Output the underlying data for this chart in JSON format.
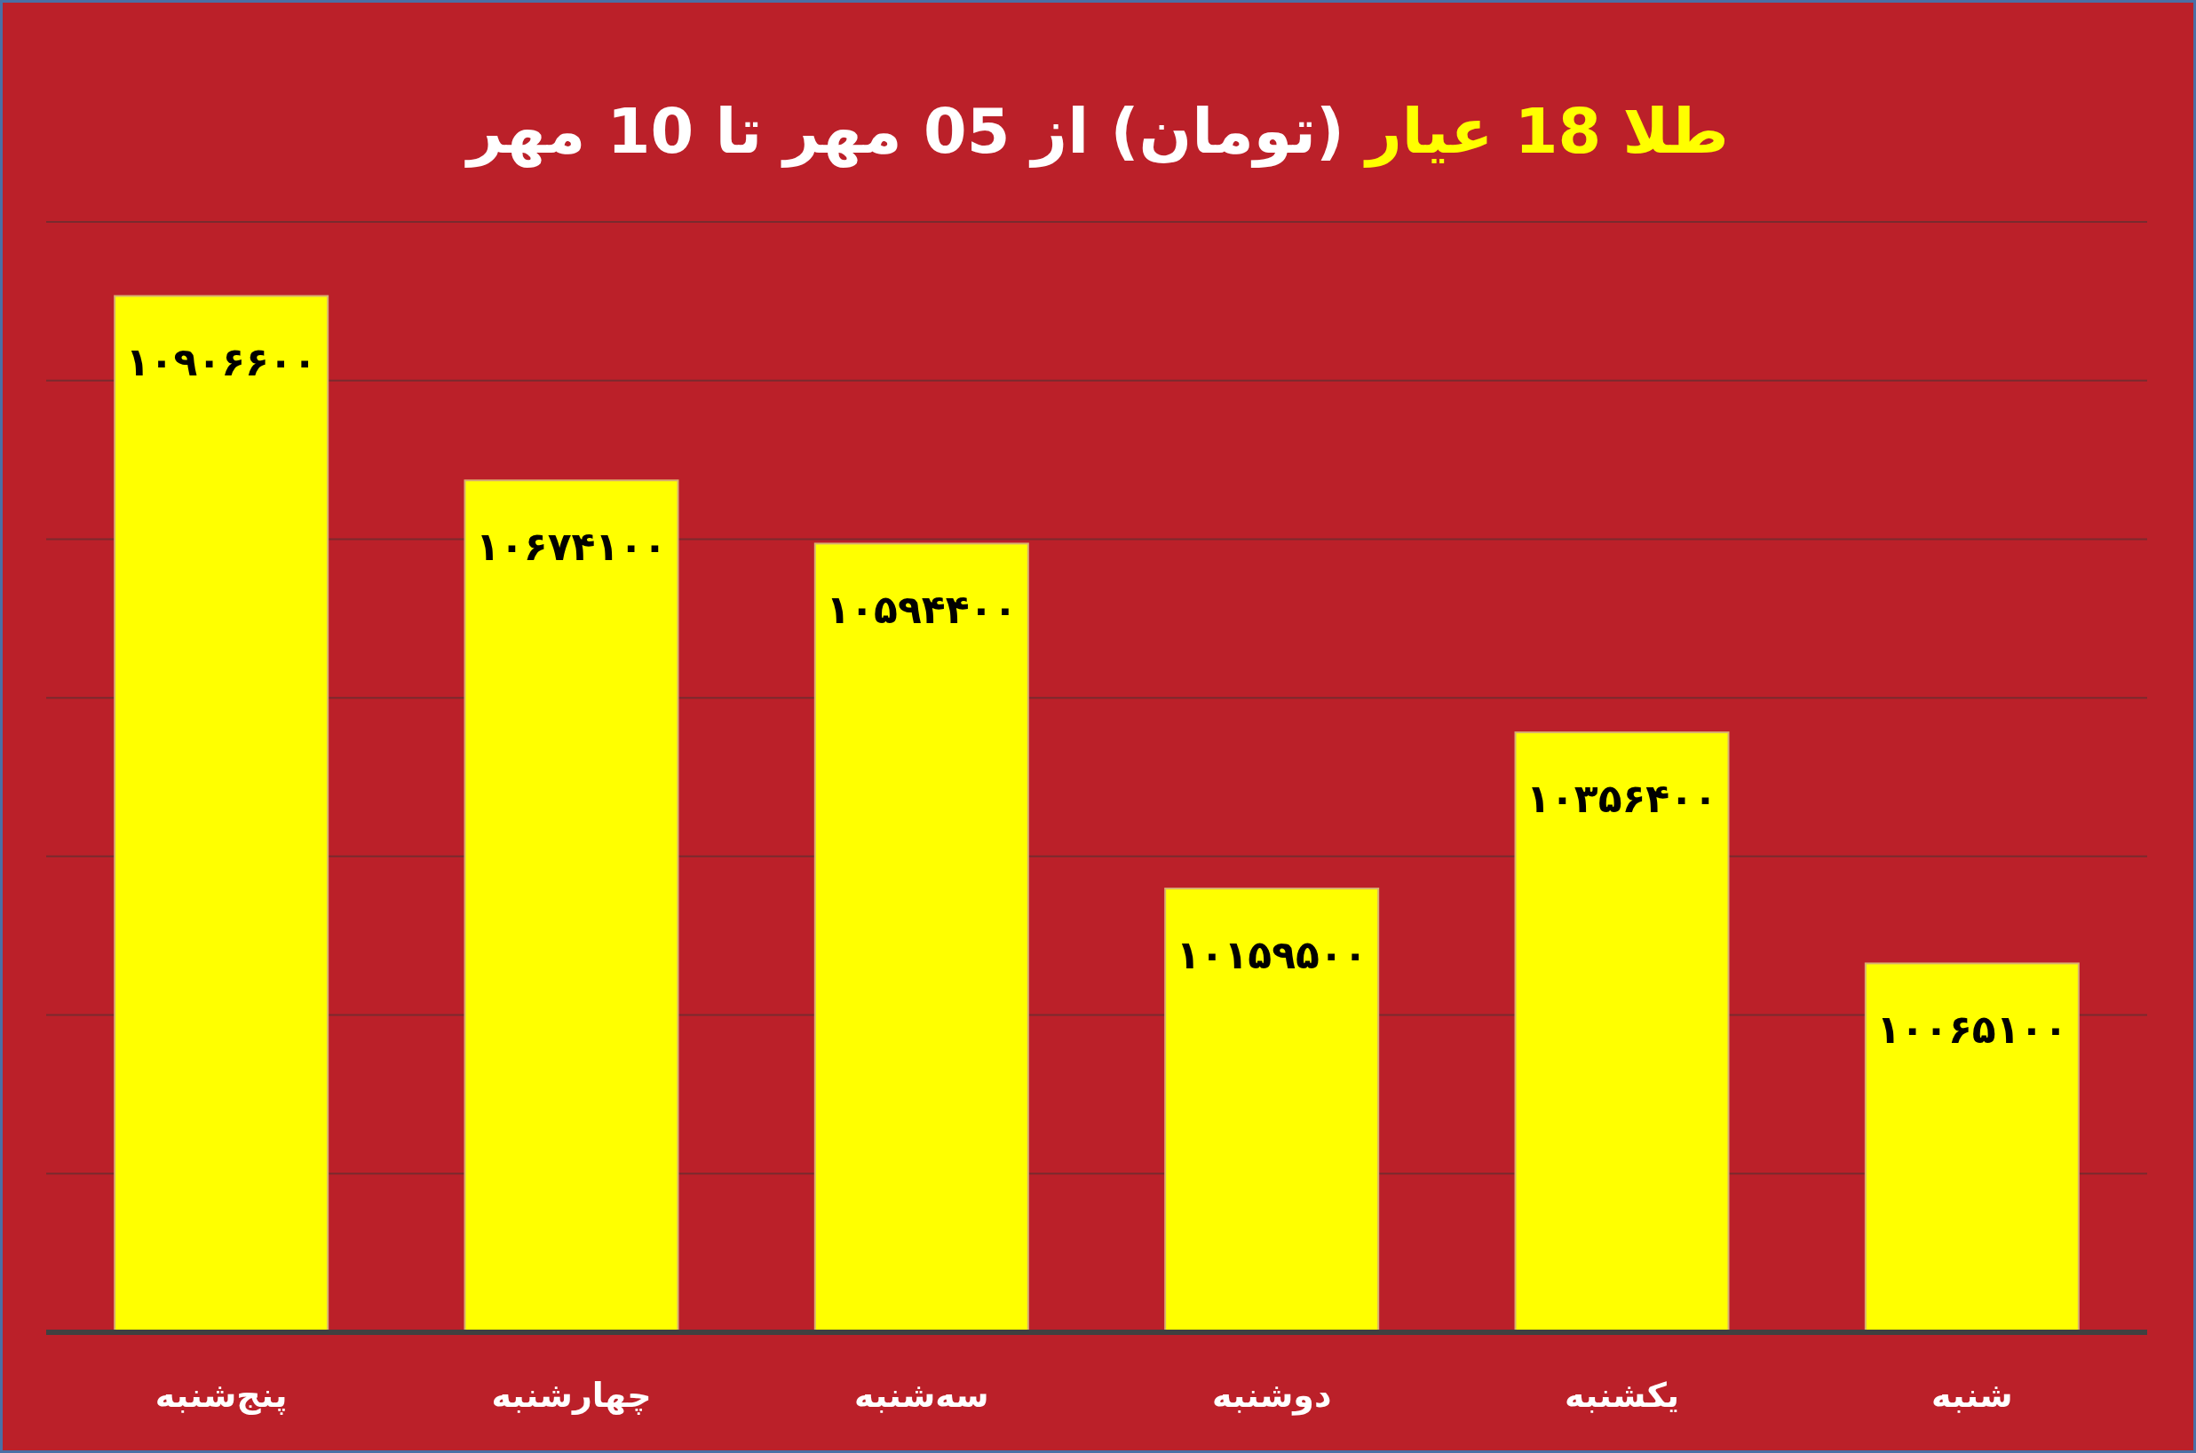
{
  "chart_data": {
    "type": "bar",
    "title": "طلا 18 عیار (تومان) از 05 مهر تا 10 مهر",
    "categories": [
      "پنج‌شنبه",
      "چهارشنبه",
      "سه‌شنبه",
      "دوشنبه",
      "یکشنبه",
      "شنبه"
    ],
    "values": [
      10906600,
      10674100,
      10594400,
      10159500,
      10356400,
      10065100
    ],
    "value_labels": [
      "۱۰۹۰۶۶۰۰",
      "۱۰۶۷۴۱۰۰",
      "۱۰۵۹۴۴۰۰",
      "۱۰۱۵۹۵۰۰",
      "۱۰۳۵۶۴۰۰",
      "۱۰۰۶۵۱۰۰"
    ],
    "color": "#ffff00",
    "ylim": [
      9600000,
      11000000
    ],
    "yticks": [
      {
        "value": 9800000,
        "label": null
      },
      {
        "value": 10000000,
        "label": null
      },
      {
        "value": 10200000,
        "label": null
      },
      {
        "value": 10400000,
        "label": null
      },
      {
        "value": 10600000,
        "label": null
      },
      {
        "value": 10800000,
        "label": null
      },
      {
        "value": 11000000,
        "label": null
      }
    ],
    "grid": "y"
  }
}
